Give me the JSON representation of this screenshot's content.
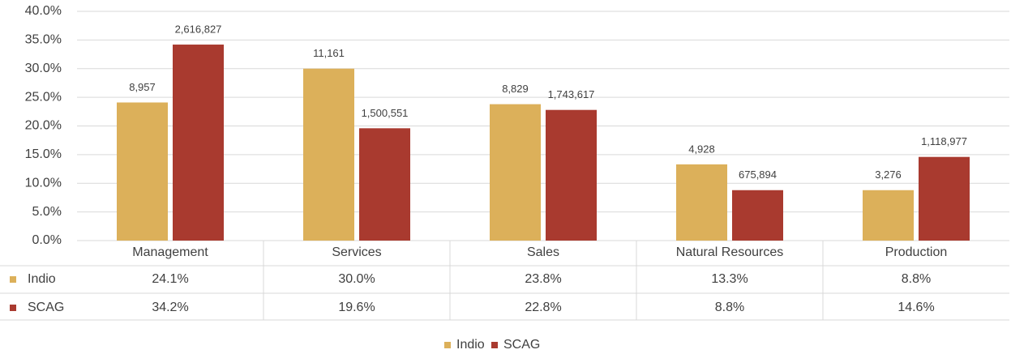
{
  "chart_data": {
    "type": "bar",
    "categories": [
      "Management",
      "Services",
      "Sales",
      "Natural Resources",
      "Production"
    ],
    "series": [
      {
        "name": "Indio",
        "color": "#dcb05a",
        "values": [
          24.1,
          30.0,
          23.8,
          13.3,
          8.8
        ],
        "value_labels": [
          "24.1%",
          "30.0%",
          "23.8%",
          "13.3%",
          "8.8%"
        ],
        "count_labels": [
          "8,957",
          "11,161",
          "8,829",
          "4,928",
          "3,276"
        ]
      },
      {
        "name": "SCAG",
        "color": "#a93a2f",
        "values": [
          34.2,
          19.6,
          22.8,
          8.8,
          14.6
        ],
        "value_labels": [
          "34.2%",
          "19.6%",
          "22.8%",
          "8.8%",
          "14.6%"
        ],
        "count_labels": [
          "2,616,827",
          "1,500,551",
          "1,743,617",
          "675,894",
          "1,118,977"
        ]
      }
    ],
    "ylim": [
      0,
      40
    ],
    "yticks": [
      {
        "value": 0,
        "label": "0.0%"
      },
      {
        "value": 5,
        "label": "5.0%"
      },
      {
        "value": 10,
        "label": "10.0%"
      },
      {
        "value": 15,
        "label": "15.0%"
      },
      {
        "value": 20,
        "label": "20.0%"
      },
      {
        "value": 25,
        "label": "25.0%"
      },
      {
        "value": 30,
        "label": "30.0%"
      },
      {
        "value": 35,
        "label": "35.0%"
      },
      {
        "value": 40,
        "label": "40.0%"
      }
    ],
    "grid": true,
    "legend": "bottom"
  }
}
